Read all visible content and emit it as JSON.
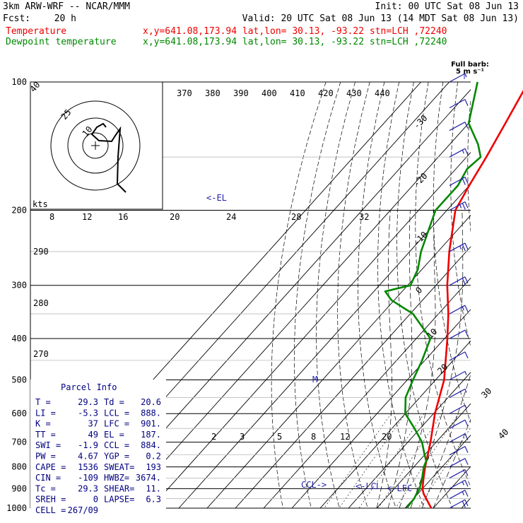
{
  "header": {
    "line1_left": "3km ARW-WRF -- NCAR/MMM",
    "line1_right": "Init: 00 UTC Sat 08 Jun 13",
    "line2_left": "Fcst:",
    "line2_fcst": "20 h",
    "line2_right": "Valid: 20 UTC Sat 08 Jun 13 (14 MDT Sat 08 Jun 13)",
    "line3_label": "Temperature",
    "line3_info": "x,y=641.08,173.94   lat,lon= 30.13, -93.22  stn=LCH ,72240",
    "line4_label": "Dewpoint temperature",
    "line4_info": "x,y=641.08,173.94   lat,lon= 30.13, -93.22  stn=LCH ,72240"
  },
  "wind_legend": {
    "title": "Full barb:",
    "units": "5 m s⁻¹"
  },
  "hodograph": {
    "ring_labels": [
      "10",
      "25",
      "40"
    ],
    "units_label": "kts"
  },
  "lifted_labels": {
    "el": "<-EL",
    "ccl": "CCL->",
    "lcl": "<-LCL",
    "lfc": "<-LFC",
    "m": "M"
  },
  "parcel_info": {
    "title": "Parcel Info",
    "rows": [
      [
        "T  =",
        "29.3",
        "Td  =",
        "20.6"
      ],
      [
        "LI =",
        "-5.3",
        "LCL =",
        "888."
      ],
      [
        "K  =",
        "37",
        "LFC =",
        "901."
      ],
      [
        "TT =",
        "49",
        "EL  =",
        "187."
      ],
      [
        "SWI =",
        "-1.9",
        "CCL =",
        "884."
      ],
      [
        "PW =",
        "4.67",
        "YGP =",
        "0.2"
      ],
      [
        "CAPE =",
        "1536",
        "SWEAT=",
        "193"
      ],
      [
        "CIN =",
        "-109",
        "HWBZ=",
        "3674."
      ],
      [
        "Tc =",
        "29.3",
        "SHEAR=",
        "11."
      ],
      [
        "SREH =",
        "0",
        "LAPSE=",
        "6.3"
      ],
      [
        "CELL =",
        "267/09",
        "",
        ""
      ]
    ]
  },
  "colors": {
    "temperature": "#ee0000",
    "dewpoint": "#008800",
    "wind_barbs": "#2222aa",
    "parcel_text": "#000080"
  },
  "chart_data": {
    "type": "line",
    "chart_kind": "skew-T log-P sounding",
    "y_axis": {
      "scale": "log pressure",
      "ticks": [
        100,
        200,
        300,
        400,
        500,
        600,
        700,
        800,
        900,
        1000
      ],
      "range": [
        100,
        1000
      ]
    },
    "isotherm_labels_top": [
      "-80",
      "-70",
      "-60",
      "-50",
      "-40"
    ],
    "isotherm_labels_right": [
      "-30",
      "-20",
      "-10",
      "0",
      "10",
      "20",
      "30",
      "40"
    ],
    "potential_temperature_labels": [
      "370",
      "380",
      "390",
      "400",
      "410",
      "420",
      "430",
      "440"
    ],
    "mixing_ratio_labels_lower": [
      "2",
      "3",
      "5",
      "8",
      "12",
      "20"
    ],
    "mixing_ratio_labels_upper": [
      "8",
      "12",
      "16",
      "20",
      "24",
      "28",
      "32"
    ],
    "left_labels": [
      "290",
      "280",
      "270"
    ],
    "series": [
      {
        "name": "Temperature",
        "pressure": [
          1000,
          950,
          925,
          900,
          850,
          800,
          700,
          600,
          500,
          400,
          350,
          300,
          250,
          200,
          175,
          150,
          125,
          100
        ],
        "values": [
          29.3,
          24.5,
          22.0,
          20.0,
          17.0,
          14.0,
          8.0,
          0.5,
          -7.0,
          -19.0,
          -26.5,
          -36.0,
          -46.0,
          -57.0,
          -60.0,
          -63.0,
          -67.0,
          -72.0
        ]
      },
      {
        "name": "Dewpoint temperature",
        "pressure": [
          1000,
          950,
          925,
          900,
          850,
          800,
          775,
          750,
          700,
          650,
          600,
          550,
          500,
          450,
          400,
          350,
          325,
          310,
          300,
          275,
          250,
          200,
          175,
          160,
          150,
          140,
          125,
          100
        ],
        "values": [
          20.6,
          20.2,
          19.5,
          19.0,
          16.5,
          13.5,
          12.5,
          10.0,
          5.0,
          -2.0,
          -10.0,
          -15.0,
          -18.0,
          -21.0,
          -25.0,
          -39.0,
          -51.0,
          -56.0,
          -49.0,
          -51.5,
          -56.0,
          -64.0,
          -64.0,
          -66.0,
          -65.0,
          -70.0,
          -80.0,
          -90.0
        ]
      }
    ],
    "winds_kt": {
      "pressure": [
        100,
        115,
        130,
        150,
        175,
        200,
        250,
        300,
        350,
        400,
        450,
        500,
        550,
        600,
        650,
        700,
        750,
        800,
        850,
        900,
        950,
        1000
      ],
      "speed": [
        5,
        10,
        10,
        15,
        20,
        25,
        25,
        20,
        15,
        10,
        10,
        5,
        5,
        5,
        10,
        10,
        10,
        10,
        10,
        15,
        15,
        20
      ]
    }
  }
}
